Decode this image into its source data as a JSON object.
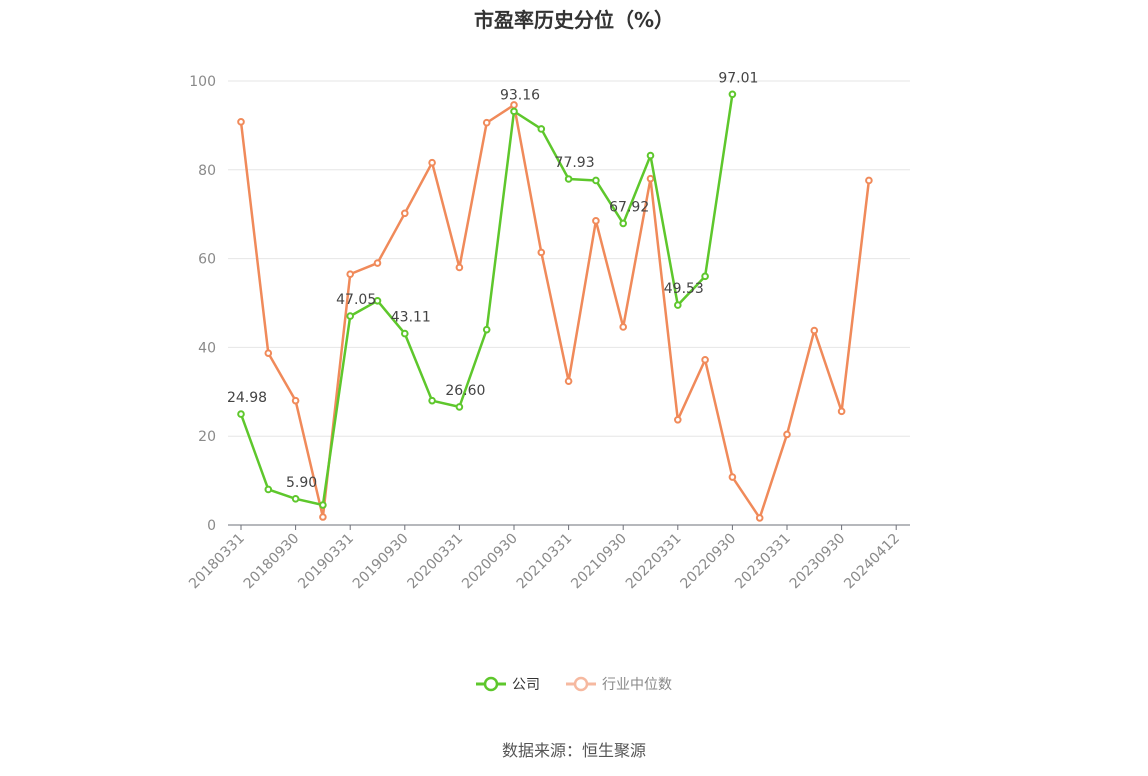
{
  "title": "市盈率历史分位（%）",
  "source": "数据来源：恒生聚源",
  "legend": {
    "company": "公司",
    "industry": "行业中位数"
  },
  "colors": {
    "company": "#5ec72c",
    "industry": "#f08a5a",
    "industry_legend": "#f6b9a0",
    "grid": "#e6e6e6",
    "axis": "#6e7079"
  },
  "chart_data": {
    "type": "line",
    "title": "市盈率历史分位（%）",
    "ylim": [
      0,
      100
    ],
    "yticks": [
      0,
      20,
      40,
      60,
      80,
      100
    ],
    "x_tick_labels": [
      "20180331",
      "20180930",
      "20190331",
      "20190930",
      "20200331",
      "20200930",
      "20210331",
      "20210930",
      "20220331",
      "20220930",
      "20230331",
      "20230930",
      "20240412"
    ],
    "x": [
      "20180331",
      "20180630",
      "20180930",
      "20181231",
      "20190331",
      "20190630",
      "20190930",
      "20191231",
      "20200331",
      "20200630",
      "20200930",
      "20201231",
      "20210331",
      "20210630",
      "20210930",
      "20211231",
      "20220331",
      "20220630",
      "20220930",
      "20221231",
      "20230331",
      "20230630",
      "20230930",
      "20231231",
      "20240412"
    ],
    "grid": true,
    "legend_position": "bottom-center",
    "series": [
      {
        "name": "公司",
        "values": [
          24.98,
          8.0,
          5.9,
          4.5,
          47.05,
          50.5,
          43.11,
          28.0,
          26.6,
          44.0,
          93.16,
          89.2,
          77.93,
          77.6,
          67.92,
          83.2,
          49.53,
          56.0,
          97.01,
          null,
          null,
          null,
          null,
          null,
          null
        ],
        "data_labels": [
          {
            "index": 0,
            "text": "24.98"
          },
          {
            "index": 2,
            "text": "5.90"
          },
          {
            "index": 4,
            "text": "47.05"
          },
          {
            "index": 6,
            "text": "43.11"
          },
          {
            "index": 8,
            "text": "26.60"
          },
          {
            "index": 10,
            "text": "93.16"
          },
          {
            "index": 12,
            "text": "77.93"
          },
          {
            "index": 14,
            "text": "67.92"
          },
          {
            "index": 16,
            "text": "49.53"
          },
          {
            "index": 18,
            "text": "97.01"
          }
        ]
      },
      {
        "name": "行业中位数",
        "values": [
          90.8,
          38.7,
          28.0,
          1.8,
          56.5,
          59.0,
          70.2,
          81.6,
          58.0,
          90.6,
          94.6,
          61.4,
          32.4,
          68.5,
          44.6,
          78.0,
          23.7,
          37.2,
          10.8,
          1.6,
          20.4,
          43.8,
          25.6,
          77.6,
          null
        ]
      }
    ]
  }
}
